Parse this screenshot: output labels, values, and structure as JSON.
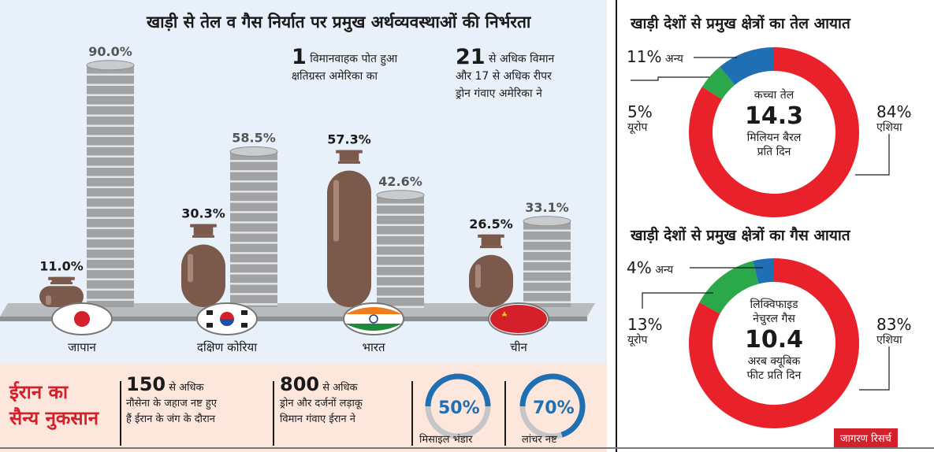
{
  "chart_data": [
    {
      "type": "bar",
      "title": "खाड़ी से तेल व गैस निर्यात पर प्रमुख अर्थव्यवस्थाओं की निर्भरता",
      "categories": [
        "जापान",
        "दक्षिण कोरिया",
        "भारत",
        "चीन"
      ],
      "series": [
        {
          "values": [
            11.0,
            30.3,
            57.3,
            26.5
          ],
          "value_labels": [
            "11.0%",
            "30.3%",
            "57.3%",
            "26.5%"
          ],
          "color": "#7b5a4c",
          "shape": "gas-cylinder"
        },
        {
          "values": [
            90.0,
            58.5,
            42.6,
            33.1
          ],
          "value_labels": [
            "90.0%",
            "58.5%",
            "42.6%",
            "33.1%"
          ],
          "color": "#a0a2a4",
          "shape": "oil-barrel-stack"
        }
      ],
      "ylim": [
        0,
        100
      ]
    },
    {
      "type": "pie",
      "title": "खाड़ी देशों से प्रमुख क्षेत्रों का तेल आयात",
      "slices": [
        {
          "label": "एशिया",
          "value": 84,
          "display": "84%",
          "color": "#e8212a"
        },
        {
          "label": "यूरोप",
          "value": 5,
          "display": "5%",
          "color": "#2aa84a"
        },
        {
          "label": "अन्य",
          "value": 11,
          "display": "11%",
          "color": "#1f6fb5"
        }
      ],
      "center": {
        "line1": "कच्चा तेल",
        "value": "14.3",
        "line2": "मिलियन बैरल",
        "line3": "प्रति दिन"
      }
    },
    {
      "type": "pie",
      "title": "खाड़ी देशों से प्रमुख क्षेत्रों का गैस आयात",
      "slices": [
        {
          "label": "एशिया",
          "value": 83,
          "display": "83%",
          "color": "#e8212a"
        },
        {
          "label": "यूरोप",
          "value": 13,
          "display": "13%",
          "color": "#2aa84a"
        },
        {
          "label": "अन्य",
          "value": 4,
          "display": "4%",
          "color": "#1f6fb5"
        }
      ],
      "center": {
        "line1": "लिक्विफाइड",
        "line1b": "नेचुरल गैस",
        "value": "10.4",
        "line2": "अरब क्यूबिक",
        "line3": "फीट प्रति दिन"
      }
    }
  ],
  "notes": [
    {
      "num": "1",
      "line1": "विमानवाहक पोत हुआ",
      "line2": "क्षतिग्रस्त अमेरिका का"
    },
    {
      "num": "21",
      "line1": "से अधिक विमान",
      "line2": "और 17 से अधिक रीपर",
      "line3": "ड्रोन गंवाए अमेरिका ने"
    }
  ],
  "iran": {
    "title1": "ईरान का",
    "title2": "सैन्य नुकसान",
    "items": [
      {
        "num": "150",
        "line1": "से अधिक",
        "line2": "नौसेना के जहाज नष्ट हुए",
        "line3": "हैं ईरान के जंग के दौरान"
      },
      {
        "num": "800",
        "line1": "से अधिक",
        "line2": "ड्रोन और दर्जनों लड़ाकू",
        "line3": "विमान गंवाए ईरान ने"
      }
    ],
    "gauges": [
      {
        "value": 50,
        "display": "50%",
        "label": "मिसाइल भंडार"
      },
      {
        "value": 70,
        "display": "70%",
        "label": "लांचर नष्ट"
      }
    ]
  },
  "source": "जागरण रिसर्च",
  "colors": {
    "cylinder": "#7b5a4c",
    "barrel": "#a0a2a4",
    "asia": "#e8212a",
    "europe": "#2aa84a",
    "other": "#1f6fb5",
    "gauge": "#1f6fb5"
  }
}
